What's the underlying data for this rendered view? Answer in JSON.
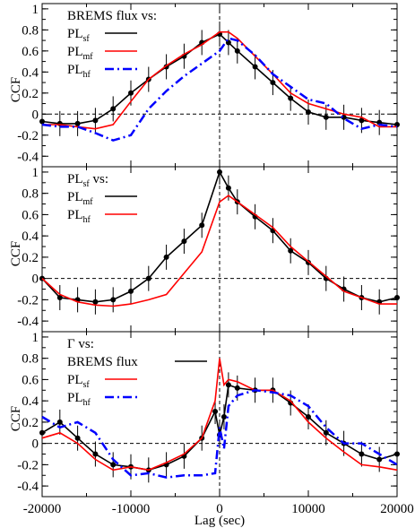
{
  "figure": {
    "xlabel": "Lag (sec)",
    "ylabel": "CCF"
  },
  "chart_data": [
    {
      "type": "line",
      "panel": "top",
      "legend_title": "BREMS flux vs:",
      "xlim": [
        -20000,
        20000
      ],
      "ylim": [
        -0.5,
        1.05
      ],
      "xticks": [
        -20000,
        -10000,
        0,
        10000,
        20000
      ],
      "yticks": [
        -0.4,
        -0.2,
        0,
        0.2,
        0.4,
        0.6,
        0.8,
        1
      ],
      "ytick_labels": [
        "-0.4",
        "-0.2",
        "0",
        "0.2",
        "0.4",
        "0.6",
        "0.8",
        "1"
      ],
      "xtick_labels": [
        "",
        "",
        "",
        "",
        ""
      ],
      "series": [
        {
          "name": "PL",
          "sub": "sf",
          "color": "#000000",
          "style": "solid-markers-errorbars",
          "x": [
            -20000,
            -18000,
            -16000,
            -14000,
            -12000,
            -10000,
            -8000,
            -6000,
            -4000,
            -2000,
            0,
            1000,
            2000,
            4000,
            6000,
            8000,
            10000,
            12000,
            14000,
            16000,
            18000,
            20000
          ],
          "y": [
            -0.07,
            -0.09,
            -0.09,
            -0.06,
            0.05,
            0.2,
            0.33,
            0.45,
            0.55,
            0.68,
            0.76,
            0.68,
            0.6,
            0.45,
            0.3,
            0.15,
            0.02,
            -0.03,
            -0.03,
            -0.06,
            -0.08,
            -0.1
          ]
        },
        {
          "name": "PL",
          "sub": "mf",
          "color": "#ff0000",
          "style": "solid",
          "x": [
            -20000,
            -18000,
            -16000,
            -14000,
            -12000,
            -10000,
            -8000,
            -6000,
            -4000,
            -2000,
            0,
            1000,
            2000,
            4000,
            6000,
            8000,
            10000,
            12000,
            14000,
            16000,
            18000,
            20000
          ],
          "y": [
            -0.1,
            -0.1,
            -0.12,
            -0.14,
            -0.1,
            0.12,
            0.33,
            0.46,
            0.57,
            0.66,
            0.78,
            0.78,
            0.72,
            0.55,
            0.38,
            0.2,
            0.1,
            0.05,
            0.0,
            -0.03,
            -0.12,
            -0.12
          ]
        },
        {
          "name": "PL",
          "sub": "hf",
          "color": "#0000ff",
          "style": "dash-dot",
          "x": [
            -20000,
            -18000,
            -16000,
            -14000,
            -12000,
            -10000,
            -8000,
            -6000,
            -4000,
            -2000,
            0,
            1000,
            2000,
            4000,
            6000,
            8000,
            10000,
            12000,
            14000,
            16000,
            18000,
            20000
          ],
          "y": [
            -0.1,
            -0.12,
            -0.12,
            -0.18,
            -0.25,
            -0.2,
            0.05,
            0.22,
            0.36,
            0.48,
            0.6,
            0.72,
            0.7,
            0.56,
            0.38,
            0.26,
            0.14,
            0.1,
            -0.04,
            -0.14,
            -0.1,
            -0.12
          ]
        }
      ]
    },
    {
      "type": "line",
      "panel": "middle",
      "legend_title": "PL",
      "legend_title_sub": "sf",
      "legend_title_suffix": "vs:",
      "xlim": [
        -20000,
        20000
      ],
      "ylim": [
        -0.5,
        1.05
      ],
      "xticks": [
        -20000,
        -10000,
        0,
        10000,
        20000
      ],
      "yticks": [
        -0.4,
        -0.2,
        0,
        0.2,
        0.4,
        0.6,
        0.8,
        1
      ],
      "ytick_labels": [
        "-0.4",
        "-0.2",
        "0",
        "0.2",
        "0.4",
        "0.6",
        "0.8",
        "1"
      ],
      "xtick_labels": [
        "",
        "",
        "",
        "",
        ""
      ],
      "series": [
        {
          "name": "PL",
          "sub": "mf",
          "color": "#000000",
          "style": "solid-markers-errorbars",
          "x": [
            -20000,
            -18000,
            -16000,
            -14000,
            -12000,
            -10000,
            -8000,
            -6000,
            -4000,
            -2000,
            0,
            1000,
            2000,
            4000,
            6000,
            8000,
            10000,
            12000,
            14000,
            16000,
            18000,
            20000
          ],
          "y": [
            0.0,
            -0.18,
            -0.2,
            -0.22,
            -0.2,
            -0.12,
            0.0,
            0.2,
            0.35,
            0.5,
            1.0,
            0.85,
            0.72,
            0.58,
            0.45,
            0.26,
            0.15,
            0.0,
            -0.1,
            -0.18,
            -0.22,
            -0.18
          ]
        },
        {
          "name": "PL",
          "sub": "hf",
          "color": "#ff0000",
          "style": "solid",
          "x": [
            -20000,
            -18000,
            -16000,
            -14000,
            -12000,
            -10000,
            -8000,
            -6000,
            -4000,
            -2000,
            0,
            1000,
            2000,
            4000,
            6000,
            8000,
            10000,
            12000,
            14000,
            16000,
            18000,
            20000
          ],
          "y": [
            0.0,
            -0.15,
            -0.22,
            -0.25,
            -0.26,
            -0.24,
            -0.2,
            -0.15,
            0.05,
            0.25,
            0.72,
            0.78,
            0.72,
            0.6,
            0.48,
            0.3,
            0.16,
            0.02,
            -0.12,
            -0.18,
            -0.24,
            -0.24
          ]
        }
      ]
    },
    {
      "type": "line",
      "panel": "bottom",
      "legend_title": "Γ vs:",
      "xlim": [
        -20000,
        20000
      ],
      "ylim": [
        -0.5,
        1.05
      ],
      "xticks": [
        -20000,
        -10000,
        0,
        10000,
        20000
      ],
      "yticks": [
        -0.4,
        -0.2,
        0,
        0.2,
        0.4,
        0.6,
        0.8,
        1
      ],
      "ytick_labels": [
        "-0.4",
        "-0.2",
        "0",
        "0.2",
        "0.4",
        "0.6",
        "0.8",
        "1"
      ],
      "xtick_labels": [
        "-20000",
        "-10000",
        "0",
        "10000",
        "20000"
      ],
      "series": [
        {
          "name": "BREMS flux",
          "sub": "",
          "color": "#000000",
          "style": "solid-markers-errorbars",
          "x": [
            -20000,
            -18000,
            -16000,
            -14000,
            -12000,
            -10000,
            -8000,
            -6000,
            -4000,
            -2000,
            -500,
            0,
            500,
            1000,
            2000,
            4000,
            6000,
            8000,
            10000,
            12000,
            14000,
            16000,
            18000,
            20000
          ],
          "y": [
            0.1,
            0.2,
            0.05,
            -0.1,
            -0.2,
            -0.22,
            -0.25,
            -0.2,
            -0.12,
            0.05,
            0.3,
            0.08,
            0.25,
            0.55,
            0.52,
            0.5,
            0.5,
            0.38,
            0.25,
            0.1,
            0.0,
            -0.1,
            -0.15,
            -0.1
          ]
        },
        {
          "name": "PL",
          "sub": "sf",
          "color": "#ff0000",
          "style": "solid",
          "x": [
            -20000,
            -18000,
            -16000,
            -14000,
            -12000,
            -10000,
            -8000,
            -6000,
            -4000,
            -2000,
            -500,
            0,
            500,
            1000,
            2000,
            4000,
            6000,
            8000,
            10000,
            12000,
            14000,
            16000,
            18000,
            20000
          ],
          "y": [
            0.05,
            0.1,
            0.0,
            -0.15,
            -0.25,
            -0.22,
            -0.25,
            -0.18,
            -0.1,
            0.05,
            0.4,
            0.8,
            0.55,
            0.6,
            0.58,
            0.5,
            0.5,
            0.4,
            0.2,
            0.05,
            -0.08,
            -0.2,
            -0.22,
            -0.25
          ]
        },
        {
          "name": "PL",
          "sub": "hf",
          "color": "#0000ff",
          "style": "dash-dot",
          "x": [
            -20000,
            -18000,
            -16000,
            -14000,
            -12000,
            -10000,
            -8000,
            -6000,
            -4000,
            -2000,
            -500,
            0,
            500,
            1000,
            2000,
            4000,
            6000,
            8000,
            10000,
            12000,
            14000,
            16000,
            18000,
            20000
          ],
          "y": [
            0.25,
            0.15,
            0.2,
            0.1,
            -0.15,
            -0.3,
            -0.28,
            -0.32,
            -0.3,
            -0.3,
            -0.28,
            0.15,
            -0.05,
            0.35,
            0.45,
            0.5,
            0.48,
            0.45,
            0.35,
            0.15,
            0.0,
            0.0,
            -0.1,
            -0.2
          ]
        }
      ]
    }
  ]
}
